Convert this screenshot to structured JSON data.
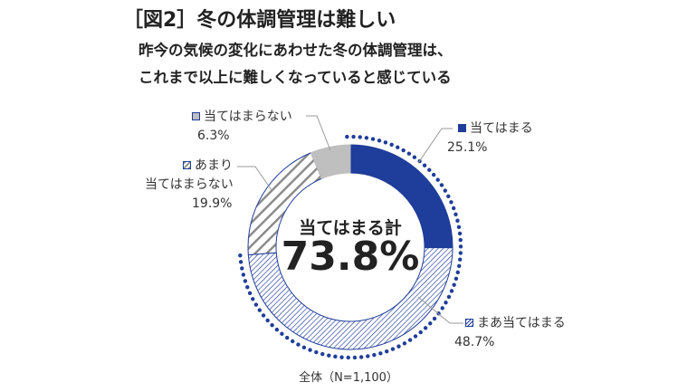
{
  "chart_data": {
    "type": "pie",
    "title": "［図2］冬の体調管理は難しい",
    "subtitle": [
      "昨今の気候の変化にあわせた冬の体調管理は、",
      "これまで以上に難しくなっていると感じている"
    ],
    "slices": [
      {
        "label": "当てはまる",
        "value": 25.1,
        "value_label": "25.1%",
        "color": "#1f3d9a",
        "fill": "solid"
      },
      {
        "label": "まあ当てはまる",
        "value": 48.7,
        "value_label": "48.7%",
        "color": "#1f3d9a",
        "fill": "hatch"
      },
      {
        "label_lines": [
          "あまり",
          "当てはまらない"
        ],
        "value": 19.9,
        "value_label": "19.9%",
        "color": "#8c8c8c",
        "fill": "stripe"
      },
      {
        "label": "当てはまらない",
        "value": 6.3,
        "value_label": "6.3%",
        "color": "#bfbfbf",
        "fill": "solid"
      }
    ],
    "center_label": "当てはまる計",
    "center_value": "73.8%",
    "footnote": "全体（N=1,100）",
    "donut": true
  }
}
